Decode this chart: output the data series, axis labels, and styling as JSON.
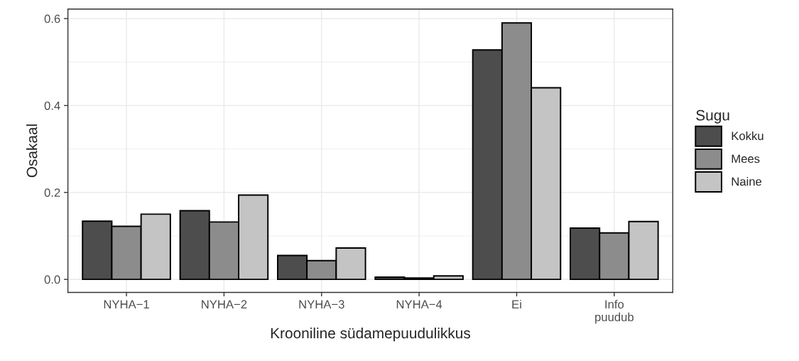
{
  "chart_data": {
    "type": "bar",
    "xlabel": "Krooniline südamepuudulikkus",
    "ylabel": "Osakaal",
    "legend_title": "Sugu",
    "categories": [
      "NYHA−1",
      "NYHA−2",
      "NYHA−3",
      "NYHA−4",
      "Ei",
      "Info\npuudub"
    ],
    "series": [
      {
        "name": "Kokku",
        "color": "#4d4d4d",
        "values": [
          0.134,
          0.158,
          0.055,
          0.005,
          0.528,
          0.118
        ]
      },
      {
        "name": "Mees",
        "color": "#8c8c8c",
        "values": [
          0.122,
          0.132,
          0.043,
          0.003,
          0.59,
          0.107
        ]
      },
      {
        "name": "Naine",
        "color": "#c4c4c4",
        "values": [
          0.15,
          0.194,
          0.072,
          0.008,
          0.441,
          0.133
        ]
      }
    ],
    "ylim": [
      -0.03,
      0.622
    ],
    "yticks": [
      {
        "value": 0,
        "label": "0.0"
      },
      {
        "value": 0.2,
        "label": "0.2"
      },
      {
        "value": 0.4,
        "label": "0.4"
      },
      {
        "value": 0.6,
        "label": "0.6"
      }
    ],
    "grid": true,
    "legend": "right"
  }
}
